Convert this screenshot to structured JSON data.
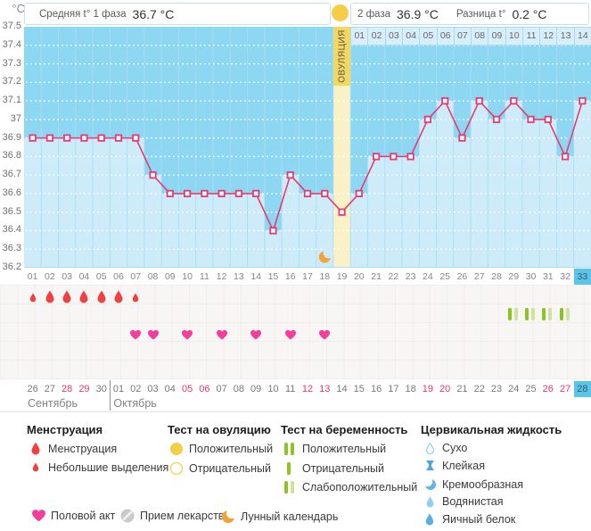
{
  "header": {
    "y_unit": "°C",
    "phase1_label": "Средняя t° 1 фаза",
    "phase1_value": "36.7 °C",
    "phase2_label": "2 фаза",
    "phase2_value": "36.9 °C",
    "diff_label": "Разница t°",
    "diff_value": "0.2 °C"
  },
  "chart_data": {
    "type": "line",
    "title": "Basal body temperature cycle chart",
    "ylabel": "°C",
    "ylim": [
      36.2,
      37.5
    ],
    "yticks": [
      "37.5",
      "37.4",
      "37.3",
      "37.2",
      "37.1",
      "37",
      "36.9",
      "36.8",
      "36.7",
      "36.6",
      "36.5",
      "36.4",
      "36.3",
      "36.2"
    ],
    "day_labels": [
      "01",
      "02",
      "03",
      "04",
      "05",
      "06",
      "07",
      "08",
      "09",
      "10",
      "11",
      "12",
      "13",
      "14",
      "15",
      "16",
      "17",
      "18",
      "19",
      "20",
      "21",
      "22",
      "23",
      "24",
      "25",
      "26",
      "27",
      "28",
      "29",
      "30",
      "31",
      "32",
      "33"
    ],
    "temperatures": [
      36.9,
      36.9,
      36.9,
      36.9,
      36.9,
      36.9,
      36.9,
      36.7,
      36.6,
      36.6,
      36.6,
      36.6,
      36.6,
      36.6,
      36.4,
      36.7,
      36.6,
      36.6,
      36.5,
      36.6,
      36.8,
      36.8,
      36.8,
      37.0,
      37.1,
      36.9,
      37.1,
      37.0,
      37.1,
      37.0,
      37.0,
      36.8,
      37.1
    ],
    "ovulation_day": 19,
    "ovulation_label": "ОВУЛЯЦИЯ",
    "phase2_day_labels": [
      "01",
      "02",
      "03",
      "04",
      "05",
      "06",
      "07",
      "08",
      "09",
      "10",
      "11",
      "12",
      "13",
      "14"
    ],
    "current_day": 33,
    "moon_day": 18,
    "events": {
      "menstruation_big_days": [
        2,
        3,
        4,
        5,
        6
      ],
      "menstruation_small_days": [
        1,
        7
      ],
      "pregnancy_test_weak_days": [
        29,
        30,
        31,
        32
      ],
      "intercourse_days": [
        7,
        8,
        10,
        12,
        14,
        16,
        18
      ]
    },
    "calendar": {
      "dates": [
        "26",
        "27",
        "28",
        "29",
        "30",
        "01",
        "02",
        "03",
        "04",
        "05",
        "06",
        "07",
        "08",
        "09",
        "10",
        "11",
        "12",
        "13",
        "14",
        "15",
        "16",
        "17",
        "18",
        "19",
        "20",
        "21",
        "22",
        "23",
        "24",
        "25",
        "26",
        "27",
        "28"
      ],
      "weekend_days": [
        3,
        4,
        10,
        11,
        17,
        18,
        24,
        25,
        31,
        32
      ],
      "current_day": 33,
      "months": [
        {
          "label": "Сентябрь",
          "from_day": 1
        },
        {
          "label": "Октябрь",
          "from_day": 6
        }
      ]
    }
  },
  "legend": {
    "sections": [
      {
        "title": "Менструация",
        "items": [
          {
            "icon": "drop-big",
            "label": "Менструация"
          },
          {
            "icon": "drop-small",
            "label": "Небольшие выделения"
          }
        ]
      },
      {
        "title": "Тест на овуляцию",
        "items": [
          {
            "icon": "circle-filled",
            "label": "Положительный"
          },
          {
            "icon": "circle-outline",
            "label": "Отрицательный"
          }
        ]
      },
      {
        "title": "Тест на беременность",
        "items": [
          {
            "icon": "bars-positive",
            "label": "Положительный"
          },
          {
            "icon": "bar-negative",
            "label": "Отрицательный"
          },
          {
            "icon": "bars-weak",
            "label": "Слабоположительный"
          }
        ]
      },
      {
        "title": "Цервикальная жидкость",
        "items": [
          {
            "icon": "drop-outline",
            "label": "Сухо"
          },
          {
            "icon": "sticky",
            "label": "Клейкая"
          },
          {
            "icon": "creamy",
            "label": "Кремообразная"
          },
          {
            "icon": "drop-watery",
            "label": "Водянистая"
          },
          {
            "icon": "drop-eggwhite",
            "label": "Яичный белок"
          }
        ]
      }
    ],
    "extra_items": [
      {
        "icon": "heart",
        "label": "Половой акт"
      },
      {
        "icon": "pill",
        "label": "Прием лекарств"
      },
      {
        "icon": "moon",
        "label": "Лунный календарь"
      }
    ]
  },
  "colors": {
    "line": "#e73a71",
    "marker_fill": "#ffffff",
    "chart_bg": "#8ed7f2",
    "chart_fill": "#ceebf9",
    "column_sep": "#a8dff4",
    "ovulation_band": "#faf1c6",
    "ovulation_strip": "#f4d761",
    "ovulation_circle": "#f6cd46",
    "current_day_bg": "#58c5e9",
    "weekend_date": "#e8356d",
    "menstruation_drop": "#f04040",
    "heart": "#f33e9c",
    "test_bar_dark": "#8dc322",
    "test_bar_pale": "#cee39c",
    "cervical_blue": "#57aee2",
    "cervical_light": "#8ecff2",
    "moon": "#f2a33c",
    "pill": "#c9c9c9"
  }
}
